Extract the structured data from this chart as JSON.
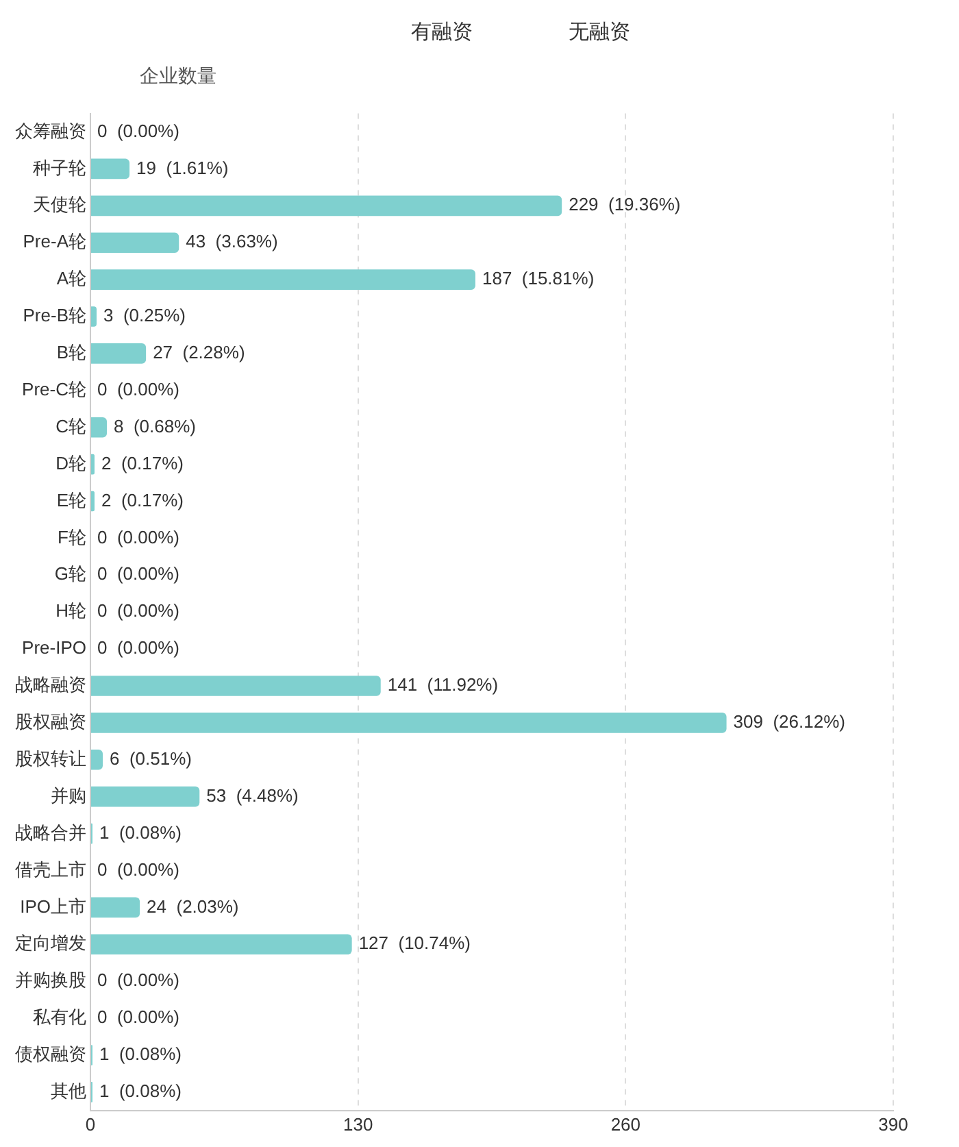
{
  "chart_data": {
    "type": "bar",
    "orientation": "horizontal",
    "ylabel": "企业数量",
    "annotations": [
      "有融资",
      "无融资"
    ],
    "categories": [
      "众筹融资",
      "种子轮",
      "天使轮",
      "Pre-A轮",
      "A轮",
      "Pre-B轮",
      "B轮",
      "Pre-C轮",
      "C轮",
      "D轮",
      "E轮",
      "F轮",
      "G轮",
      "H轮",
      "Pre-IPO",
      "战略融资",
      "股权融资",
      "股权转让",
      "并购",
      "战略合并",
      "借壳上市",
      "IPO上市",
      "定向增发",
      "并购换股",
      "私有化",
      "债权融资",
      "其他"
    ],
    "values": [
      0,
      19,
      229,
      43,
      187,
      3,
      27,
      0,
      8,
      2,
      2,
      0,
      0,
      0,
      0,
      141,
      309,
      6,
      53,
      1,
      0,
      24,
      127,
      0,
      0,
      1,
      1
    ],
    "value_labels": [
      "0  (0.00%)",
      "19  (1.61%)",
      "229  (19.36%)",
      "43  (3.63%)",
      "187  (15.81%)",
      "3  (0.25%)",
      "27  (2.28%)",
      "0  (0.00%)",
      "8  (0.68%)",
      "2  (0.17%)",
      "2  (0.17%)",
      "0  (0.00%)",
      "0  (0.00%)",
      "0  (0.00%)",
      "0  (0.00%)",
      "141  (11.92%)",
      "309  (26.12%)",
      "6  (0.51%)",
      "53  (4.48%)",
      "1  (0.08%)",
      "0  (0.00%)",
      "24  (2.03%)",
      "127  (10.74%)",
      "0  (0.00%)",
      "0  (0.00%)",
      "1  (0.08%)",
      "1  (0.08%)"
    ],
    "color": "#7fd0cf",
    "xlim": [
      0,
      390
    ],
    "xticks": [
      0,
      130,
      260,
      390
    ],
    "grid": "x",
    "legend": false
  }
}
